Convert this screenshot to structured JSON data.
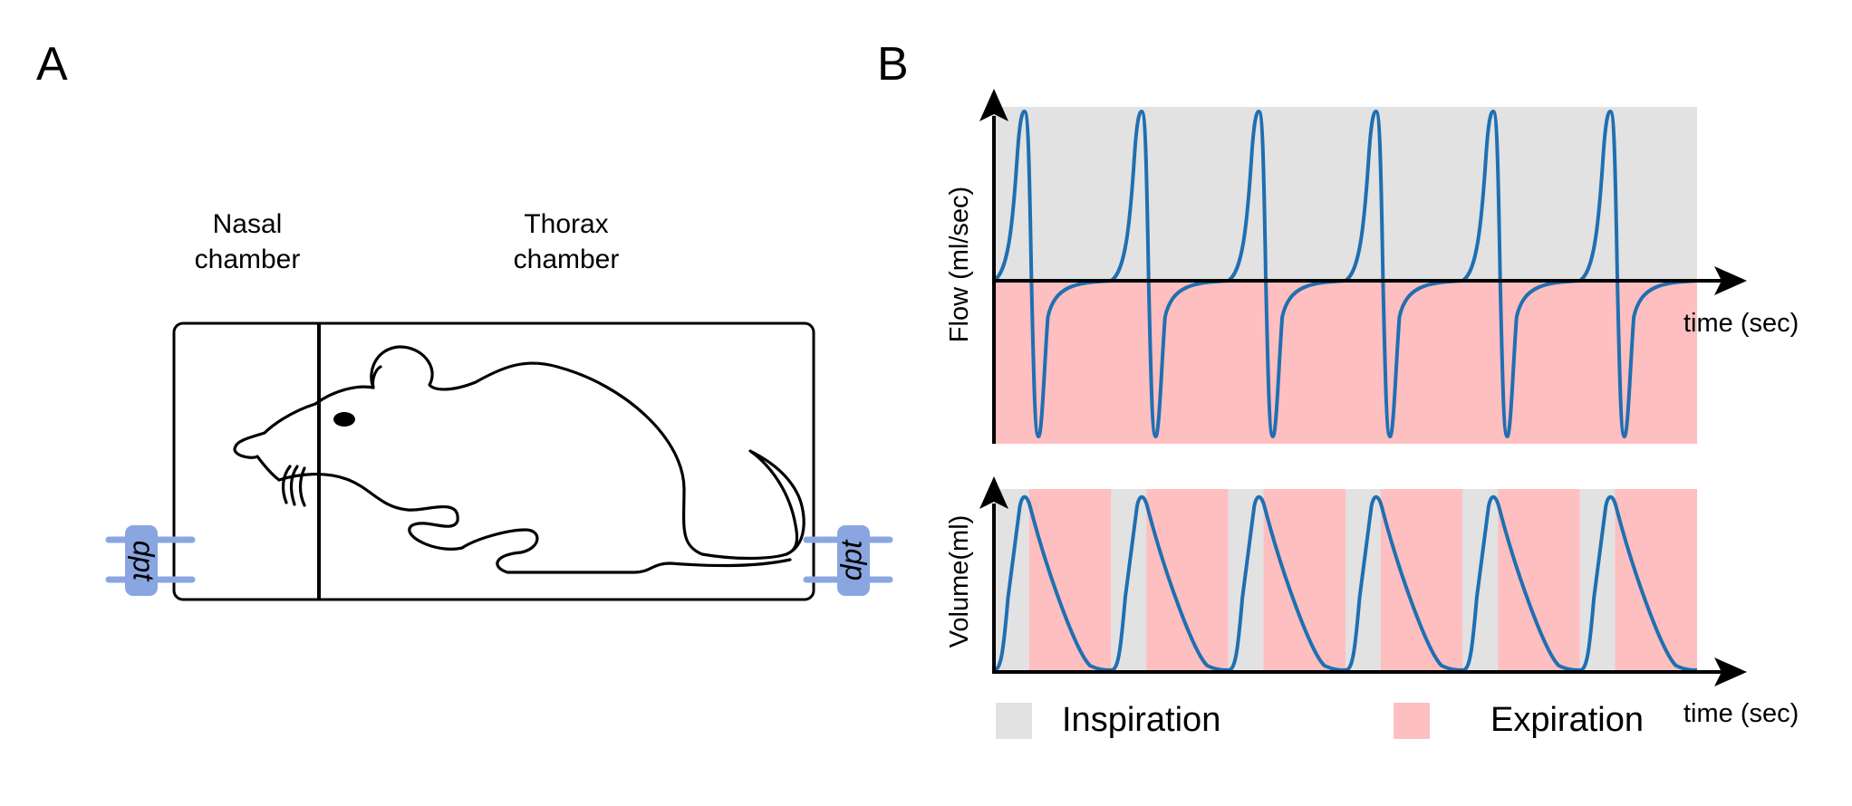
{
  "panel_a": {
    "letter": "A",
    "nasal_chamber_label": [
      "Nasal",
      "chamber"
    ],
    "thorax_chamber_label": [
      "Thorax",
      "chamber"
    ],
    "transducer_label": "dpt",
    "transducer_color": "#8aa6e0"
  },
  "panel_b": {
    "letter": "B",
    "flow_plot": {
      "ylabel": "Flow (ml/sec)",
      "xlabel": "time (sec)",
      "breath_count": 6,
      "trace_color": "#1f6fb2",
      "inspiration_color": "#e2e2e2",
      "expiration_color": "#fdbfbf"
    },
    "volume_plot": {
      "ylabel": "Volume(ml)",
      "xlabel": "time (sec)",
      "breath_count": 6
    },
    "legend": {
      "inspiration_label": "Inspiration",
      "expiration_label": "Expiration"
    }
  }
}
